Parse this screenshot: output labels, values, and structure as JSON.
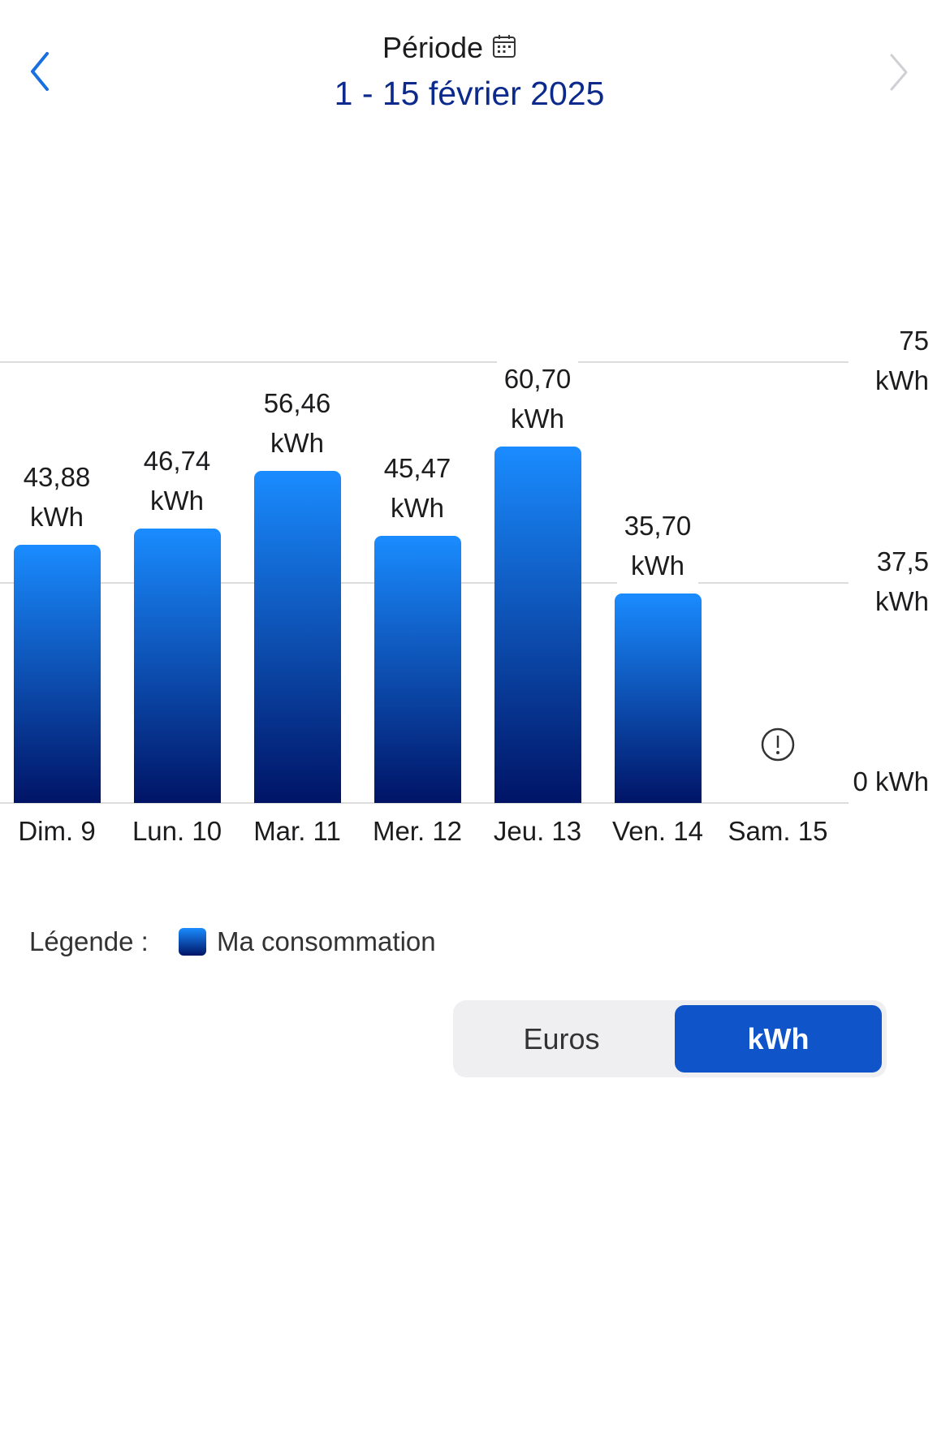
{
  "header": {
    "label": "Période",
    "period": "1 - 15 février 2025"
  },
  "chart_data": {
    "type": "bar",
    "categories": [
      "Dim. 9",
      "Lun. 10",
      "Mar. 11",
      "Mer. 12",
      "Jeu. 13",
      "Ven. 14",
      "Sam. 15"
    ],
    "series": [
      {
        "name": "Ma consommation",
        "color": "#1a8cff",
        "values": [
          43.88,
          46.74,
          56.46,
          45.47,
          60.7,
          35.7,
          null
        ],
        "value_labels": [
          "43,88 kWh",
          "46,74 kWh",
          "56,46 kWh",
          "45,47 kWh",
          "60,70 kWh",
          "35,70 kWh",
          null
        ]
      }
    ],
    "ylim": [
      0,
      75
    ],
    "yticks": [
      {
        "value": 0,
        "label": "0 kWh"
      },
      {
        "value": 37.5,
        "label": "37,5 kWh"
      },
      {
        "value": 75,
        "label": "75 kWh"
      }
    ],
    "grid": true,
    "legend_label": "Légende :"
  },
  "toggle": {
    "options": [
      "Euros",
      "kWh"
    ],
    "selected": "kWh"
  }
}
